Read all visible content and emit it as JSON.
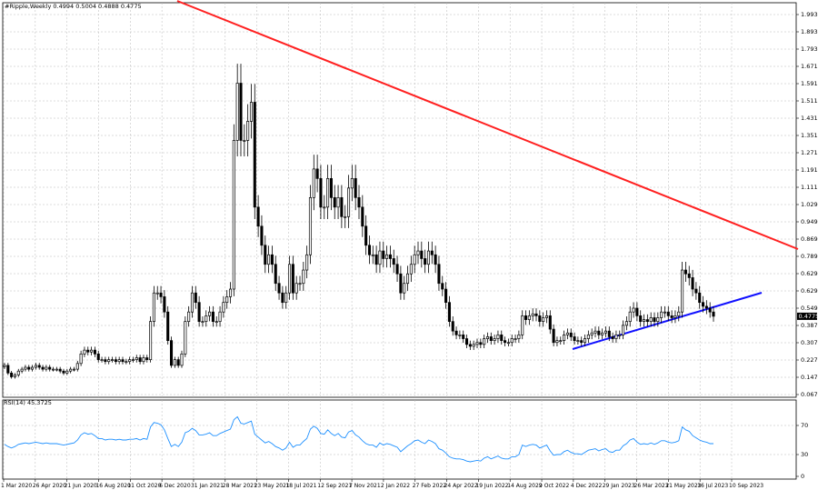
{
  "chart_data": {
    "type": "candlestick",
    "title": "#Ripple,Weekly  0.4994 0.5004 0.4888 0.4775",
    "last_price": "0.4775",
    "ylim": [
      0.067,
      2.06
    ],
    "yticks": [
      "1.9930",
      "1.8930",
      "1.7930",
      "1.6710",
      "1.5910",
      "1.5110",
      "1.4310",
      "1.3510",
      "1.2710",
      "1.1910",
      "1.1110",
      "1.0290",
      "0.9490",
      "0.8690",
      "0.7890",
      "0.6290",
      "0.6290",
      "0.5490",
      "0.3870",
      "0.3070",
      "0.2270",
      "0.1470",
      "0.0670"
    ],
    "xlabels": [
      "1 Mar 2020",
      "26 Apr 2020",
      "21 Jun 2020",
      "16 Aug 2020",
      "11 Oct 2020",
      "6 Dec 2020",
      "31 Jan 2021",
      "28 Mar 2021",
      "23 May 2021",
      "18 Jul 2021",
      "12 Sep 2021",
      "7 Nov 2021",
      "2 Jan 2022",
      "27 Feb 2022",
      "24 Apr 2022",
      "19 Jun 2022",
      "14 Aug 2022",
      "9 Oct 2022",
      "4 Dec 2022",
      "29 Jan 2023",
      "26 Mar 2023",
      "21 May 2023",
      "16 Jul 2023",
      "10 Sep 2023"
    ],
    "closes": [
      0.22,
      0.18,
      0.16,
      0.17,
      0.19,
      0.2,
      0.21,
      0.2,
      0.21,
      0.22,
      0.21,
      0.2,
      0.21,
      0.2,
      0.2,
      0.2,
      0.19,
      0.18,
      0.19,
      0.2,
      0.2,
      0.23,
      0.28,
      0.3,
      0.29,
      0.3,
      0.28,
      0.25,
      0.25,
      0.24,
      0.25,
      0.25,
      0.24,
      0.25,
      0.24,
      0.24,
      0.25,
      0.25,
      0.26,
      0.24,
      0.26,
      0.25,
      0.45,
      0.6,
      0.6,
      0.58,
      0.5,
      0.35,
      0.22,
      0.25,
      0.22,
      0.28,
      0.45,
      0.5,
      0.6,
      0.55,
      0.45,
      0.45,
      0.48,
      0.5,
      0.45,
      0.45,
      0.5,
      0.55,
      0.58,
      0.62,
      1.4,
      1.7,
      1.4,
      1.4,
      1.5,
      1.6,
      1.05,
      0.95,
      0.85,
      0.75,
      0.8,
      0.75,
      0.65,
      0.6,
      0.55,
      0.6,
      0.75,
      0.6,
      0.65,
      0.65,
      0.72,
      0.8,
      1.1,
      1.25,
      1.2,
      1.05,
      1.05,
      1.2,
      1.1,
      1.05,
      1.1,
      1.0,
      1.0,
      1.15,
      1.2,
      1.1,
      1.05,
      0.95,
      0.85,
      0.8,
      0.8,
      0.75,
      0.82,
      0.78,
      0.8,
      0.78,
      0.75,
      0.7,
      0.6,
      0.65,
      0.7,
      0.75,
      0.8,
      0.82,
      0.78,
      0.75,
      0.82,
      0.8,
      0.75,
      0.65,
      0.62,
      0.55,
      0.45,
      0.4,
      0.38,
      0.38,
      0.36,
      0.33,
      0.32,
      0.33,
      0.34,
      0.33,
      0.36,
      0.37,
      0.35,
      0.36,
      0.38,
      0.35,
      0.34,
      0.34,
      0.36,
      0.36,
      0.38,
      0.48,
      0.46,
      0.48,
      0.49,
      0.48,
      0.45,
      0.47,
      0.48,
      0.41,
      0.34,
      0.35,
      0.35,
      0.38,
      0.39,
      0.37,
      0.35,
      0.35,
      0.34,
      0.36,
      0.38,
      0.39,
      0.4,
      0.38,
      0.39,
      0.4,
      0.37,
      0.36,
      0.38,
      0.38,
      0.43,
      0.45,
      0.5,
      0.52,
      0.48,
      0.45,
      0.46,
      0.45,
      0.47,
      0.45,
      0.47,
      0.5,
      0.5,
      0.48,
      0.47,
      0.48,
      0.5,
      0.72,
      0.7,
      0.68,
      0.62,
      0.6,
      0.55,
      0.53,
      0.52,
      0.5,
      0.4775
    ],
    "rsi": {
      "label": "RSI(14) 45.3725",
      "ylim": [
        0,
        100
      ],
      "yticks": [
        "70",
        "30",
        "0"
      ],
      "values": [
        44,
        41,
        39,
        41,
        44,
        45,
        46,
        45,
        46,
        47,
        46,
        45,
        46,
        45,
        45,
        45,
        44,
        43,
        44,
        45,
        46,
        50,
        57,
        60,
        58,
        59,
        56,
        52,
        52,
        50,
        51,
        51,
        50,
        51,
        50,
        50,
        51,
        51,
        52,
        50,
        52,
        51,
        68,
        74,
        73,
        71,
        64,
        52,
        41,
        44,
        41,
        47,
        60,
        62,
        66,
        63,
        57,
        57,
        58,
        60,
        56,
        56,
        59,
        61,
        63,
        65,
        78,
        82,
        73,
        72,
        74,
        76,
        58,
        54,
        50,
        46,
        48,
        45,
        41,
        39,
        36,
        39,
        47,
        40,
        43,
        43,
        48,
        52,
        65,
        69,
        66,
        59,
        58,
        64,
        59,
        56,
        59,
        54,
        53,
        61,
        63,
        57,
        54,
        49,
        45,
        43,
        43,
        40,
        46,
        43,
        45,
        44,
        42,
        40,
        34,
        38,
        42,
        45,
        49,
        50,
        47,
        45,
        50,
        48,
        45,
        38,
        36,
        32,
        27,
        25,
        24,
        24,
        23,
        21,
        20,
        21,
        22,
        21,
        25,
        27,
        24,
        26,
        28,
        25,
        24,
        24,
        27,
        27,
        30,
        43,
        41,
        43,
        44,
        43,
        39,
        41,
        43,
        35,
        29,
        30,
        30,
        34,
        36,
        33,
        31,
        31,
        30,
        33,
        36,
        37,
        38,
        35,
        37,
        38,
        34,
        33,
        36,
        36,
        42,
        45,
        50,
        52,
        47,
        44,
        45,
        44,
        46,
        44,
        46,
        49,
        49,
        47,
        46,
        47,
        49,
        68,
        64,
        62,
        56,
        53,
        50,
        48,
        47,
        45,
        45
      ]
    }
  }
}
